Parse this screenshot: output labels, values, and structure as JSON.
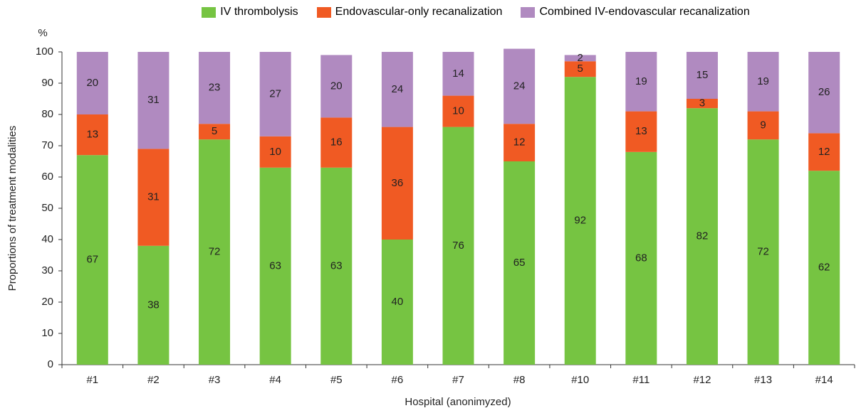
{
  "chart_data": {
    "type": "stacked_bar",
    "y_unit": "%",
    "ylabel": "Proportions of treatment modalities",
    "xlabel": "Hospital (anonimyzed)",
    "categories": [
      "#1",
      "#2",
      "#3",
      "#4",
      "#5",
      "#6",
      "#7",
      "#8",
      "#10",
      "#11",
      "#12",
      "#13",
      "#14"
    ],
    "series": [
      {
        "name": "IV thrombolysis",
        "color": "#76c442",
        "values": [
          67,
          38,
          72,
          63,
          63,
          40,
          76,
          65,
          92,
          68,
          82,
          72,
          62
        ]
      },
      {
        "name": "Endovascular-only recanalization",
        "color": "#f05a23",
        "values": [
          13,
          31,
          5,
          10,
          16,
          36,
          10,
          12,
          5,
          13,
          3,
          9,
          12
        ]
      },
      {
        "name": "Combined IV-endovascular recanalization",
        "color": "#b08ac0",
        "values": [
          20,
          31,
          23,
          27,
          20,
          24,
          14,
          24,
          2,
          19,
          15,
          19,
          26
        ]
      }
    ],
    "ylim": [
      0,
      100
    ],
    "yticks": [
      0,
      10,
      20,
      30,
      40,
      50,
      60,
      70,
      80,
      90,
      100
    ]
  }
}
